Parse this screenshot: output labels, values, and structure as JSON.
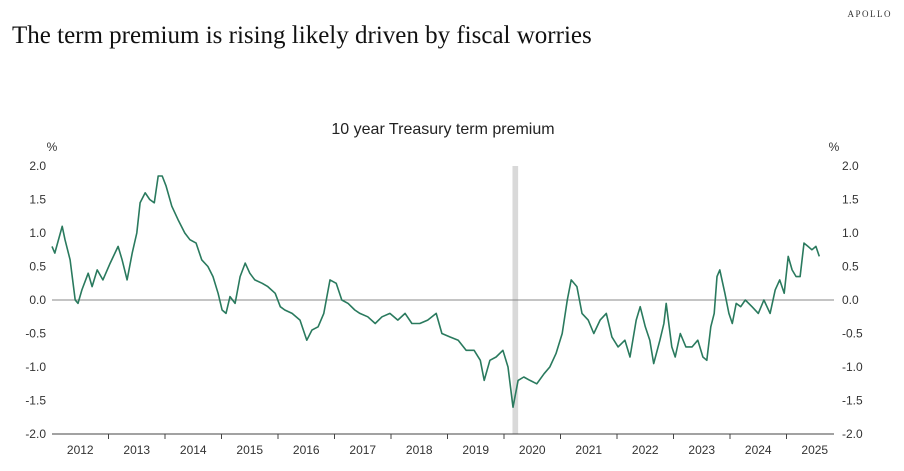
{
  "brand": "APOLLO",
  "headline": "The term premium is rising likely driven by fiscal worries",
  "chart_data": {
    "type": "line",
    "title": "10 year Treasury term premium",
    "ylabel_left": "%",
    "ylabel_right": "%",
    "ylim": [
      -2.0,
      2.0
    ],
    "yticks": [
      "2.0",
      "1.5",
      "1.0",
      "0.5",
      "0.0",
      "-0.5",
      "-1.0",
      "-1.5",
      "-2.0"
    ],
    "ytick_values": [
      2.0,
      1.5,
      1.0,
      0.5,
      0.0,
      -0.5,
      -1.0,
      -1.5,
      -2.0
    ],
    "xlim": [
      2012.0,
      2025.85
    ],
    "xticks": [
      "2012",
      "2013",
      "2014",
      "2015",
      "2016",
      "2017",
      "2018",
      "2019",
      "2020",
      "2021",
      "2022",
      "2023",
      "2024",
      "2025"
    ],
    "shaded_region": [
      2020.15,
      2020.25
    ],
    "color": "#2a7a5e",
    "series": [
      {
        "name": "10 year Treasury term premium",
        "x": [
          2012.0,
          2012.05,
          2012.18,
          2012.23,
          2012.32,
          2012.41,
          2012.46,
          2012.53,
          2012.64,
          2012.71,
          2012.8,
          2012.9,
          2013.03,
          2013.17,
          2013.24,
          2013.33,
          2013.42,
          2013.5,
          2013.56,
          2013.65,
          2013.73,
          2013.81,
          2013.88,
          2013.95,
          2014.02,
          2014.12,
          2014.23,
          2014.35,
          2014.44,
          2014.55,
          2014.65,
          2014.76,
          2014.85,
          2014.94,
          2015.01,
          2015.08,
          2015.15,
          2015.24,
          2015.33,
          2015.42,
          2015.5,
          2015.59,
          2015.72,
          2015.82,
          2015.95,
          2016.04,
          2016.12,
          2016.25,
          2016.39,
          2016.51,
          2016.6,
          2016.71,
          2016.81,
          2016.92,
          2017.03,
          2017.13,
          2017.24,
          2017.36,
          2017.45,
          2017.59,
          2017.72,
          2017.84,
          2017.98,
          2018.12,
          2018.25,
          2018.37,
          2018.51,
          2018.65,
          2018.8,
          2018.9,
          2019.04,
          2019.19,
          2019.33,
          2019.47,
          2019.58,
          2019.65,
          2019.75,
          2019.86,
          2019.98,
          2020.07,
          2020.16,
          2020.25,
          2020.35,
          2020.46,
          2020.58,
          2020.71,
          2020.81,
          2020.92,
          2021.03,
          2021.12,
          2021.19,
          2021.29,
          2021.38,
          2021.49,
          2021.59,
          2021.7,
          2021.81,
          2021.91,
          2022.02,
          2022.14,
          2022.23,
          2022.34,
          2022.41,
          2022.5,
          2022.58,
          2022.65,
          2022.76,
          2022.83,
          2022.87,
          2022.97,
          2023.03,
          2023.12,
          2023.22,
          2023.33,
          2023.43,
          2023.52,
          2023.59,
          2023.66,
          2023.72,
          2023.77,
          2023.82,
          2023.91,
          2023.98,
          2024.04,
          2024.11,
          2024.19,
          2024.27,
          2024.39,
          2024.5,
          2024.6,
          2024.71,
          2024.8,
          2024.88,
          2024.96,
          2025.03,
          2025.1,
          2025.17,
          2025.24,
          2025.31,
          2025.38,
          2025.45,
          2025.52,
          2025.58
        ],
        "y": [
          0.8,
          0.7,
          1.1,
          0.9,
          0.6,
          0.0,
          -0.05,
          0.15,
          0.4,
          0.2,
          0.45,
          0.3,
          0.55,
          0.8,
          0.6,
          0.3,
          0.7,
          1.0,
          1.45,
          1.6,
          1.5,
          1.45,
          1.85,
          1.85,
          1.7,
          1.4,
          1.2,
          1.0,
          0.9,
          0.85,
          0.6,
          0.5,
          0.35,
          0.1,
          -0.15,
          -0.2,
          0.05,
          -0.05,
          0.35,
          0.55,
          0.4,
          0.3,
          0.25,
          0.2,
          0.1,
          -0.1,
          -0.15,
          -0.2,
          -0.3,
          -0.6,
          -0.45,
          -0.4,
          -0.2,
          0.3,
          0.25,
          0.0,
          -0.05,
          -0.15,
          -0.2,
          -0.25,
          -0.35,
          -0.25,
          -0.2,
          -0.3,
          -0.2,
          -0.35,
          -0.35,
          -0.3,
          -0.2,
          -0.5,
          -0.55,
          -0.6,
          -0.75,
          -0.75,
          -0.9,
          -1.2,
          -0.9,
          -0.85,
          -0.75,
          -1.0,
          -1.6,
          -1.2,
          -1.15,
          -1.2,
          -1.25,
          -1.1,
          -1.0,
          -0.8,
          -0.5,
          0.0,
          0.3,
          0.2,
          -0.2,
          -0.3,
          -0.5,
          -0.3,
          -0.2,
          -0.55,
          -0.7,
          -0.6,
          -0.85,
          -0.3,
          -0.1,
          -0.4,
          -0.6,
          -0.95,
          -0.6,
          -0.35,
          -0.05,
          -0.7,
          -0.85,
          -0.5,
          -0.7,
          -0.7,
          -0.6,
          -0.85,
          -0.9,
          -0.4,
          -0.2,
          0.35,
          0.45,
          0.1,
          -0.2,
          -0.35,
          -0.05,
          -0.1,
          0.0,
          -0.1,
          -0.2,
          0.0,
          -0.2,
          0.15,
          0.3,
          0.1,
          0.65,
          0.45,
          0.35,
          0.35,
          0.85,
          0.8,
          0.75,
          0.8,
          0.65
        ]
      }
    ]
  }
}
